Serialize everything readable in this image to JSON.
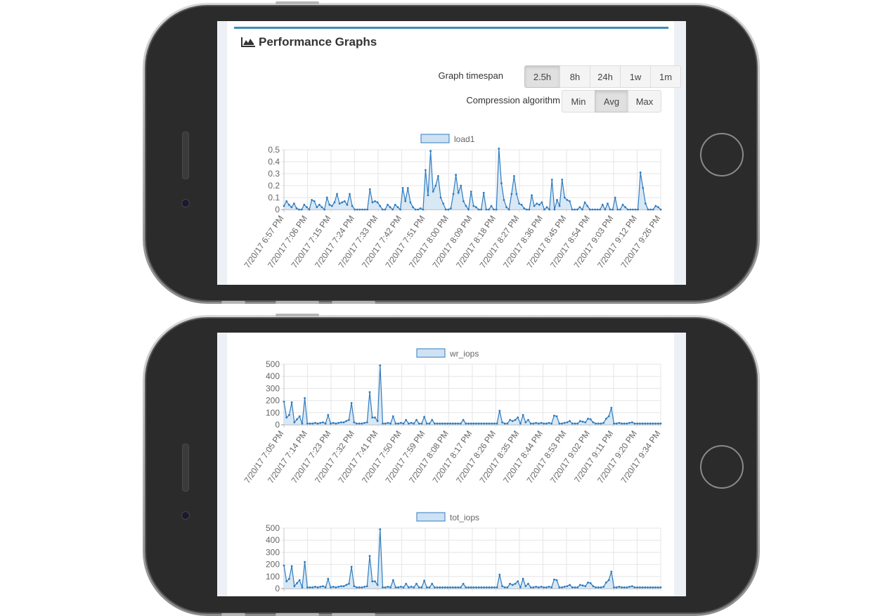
{
  "panel": {
    "title": "Performance Graphs"
  },
  "controls": {
    "timespan_label": "Graph timespan",
    "timespan_options": [
      "2.5h",
      "8h",
      "24h",
      "1w",
      "1m"
    ],
    "timespan_selected": "2.5h",
    "compression_label": "Compression algorithm",
    "compression_options": [
      "Min",
      "Avg",
      "Max"
    ],
    "compression_selected": "Avg"
  },
  "colors": {
    "series_line": "#2f7cc0",
    "series_fill": "#cfe2f3",
    "grid": "#e6e6e6",
    "panel_border": "#3c8dbc"
  },
  "chart_data": [
    {
      "type": "area",
      "legend": "load1",
      "yticks": [
        "0.5",
        "0.4",
        "0.3",
        "0.2",
        "0.1",
        "0"
      ],
      "ylim": [
        0,
        0.5
      ],
      "xticks": [
        "7/20/17 6:57 PM",
        "7/20/17 7:06 PM",
        "7/20/17 7:15 PM",
        "7/20/17 7:24 PM",
        "7/20/17 7:33 PM",
        "7/20/17 7:42 PM",
        "7/20/17 7:51 PM",
        "7/20/17 8:00 PM",
        "7/20/17 8:09 PM",
        "7/20/17 8:18 PM",
        "7/20/17 8:27 PM",
        "7/20/17 8:36 PM",
        "7/20/17 8:45 PM",
        "7/20/17 8:54 PM",
        "7/20/17 9:03 PM",
        "7/20/17 9:12 PM",
        "7/20/17 9:26 PM"
      ],
      "values": [
        0.03,
        0.07,
        0.04,
        0.02,
        0.05,
        0.01,
        0.0,
        0.0,
        0.04,
        0.02,
        0.0,
        0.08,
        0.07,
        0.02,
        0.04,
        0.02,
        0.0,
        0.1,
        0.04,
        0.03,
        0.06,
        0.13,
        0.05,
        0.06,
        0.07,
        0.04,
        0.13,
        0.03,
        0.0,
        0.0,
        0.0,
        0.0,
        0.0,
        0.0,
        0.17,
        0.06,
        0.07,
        0.06,
        0.03,
        0.0,
        0.0,
        0.04,
        0.02,
        0.0,
        0.04,
        0.02,
        0.0,
        0.18,
        0.07,
        0.18,
        0.06,
        0.02,
        0.0,
        0.0,
        0.01,
        0.0,
        0.33,
        0.12,
        0.49,
        0.15,
        0.2,
        0.28,
        0.1,
        0.05,
        0.0,
        0.0,
        0.01,
        0.13,
        0.29,
        0.14,
        0.2,
        0.07,
        0.03,
        0.0,
        0.15,
        0.03,
        0.02,
        0.0,
        0.0,
        0.14,
        0.0,
        0.0,
        0.03,
        0.0,
        0.0,
        0.51,
        0.22,
        0.08,
        0.02,
        0.0,
        0.13,
        0.28,
        0.13,
        0.05,
        0.04,
        0.01,
        0.0,
        0.0,
        0.12,
        0.03,
        0.05,
        0.04,
        0.06,
        0.0,
        0.02,
        0.0,
        0.25,
        0.0,
        0.08,
        0.03,
        0.25,
        0.1,
        0.08,
        0.07,
        0.0,
        0.0,
        0.0,
        0.02,
        0.0,
        0.06,
        0.03,
        0.0,
        0.0,
        0.0,
        0.0,
        0.0,
        0.04,
        0.0,
        0.05,
        0.0,
        0.0,
        0.1,
        0.0,
        0.0,
        0.04,
        0.02,
        0.0,
        0.0,
        0.0,
        0.0,
        0.0,
        0.31,
        0.18,
        0.05,
        0.0,
        0.0,
        0.0,
        0.03,
        0.02,
        0.0
      ]
    },
    {
      "type": "area",
      "legend": "wr_iops",
      "yticks": [
        "500",
        "400",
        "300",
        "200",
        "100",
        "0"
      ],
      "ylim": [
        0,
        500
      ],
      "xticks": [
        "7/20/17 7:05 PM",
        "7/20/17 7:14 PM",
        "7/20/17 7:23 PM",
        "7/20/17 7:32 PM",
        "7/20/17 7:41 PM",
        "7/20/17 7:50 PM",
        "7/20/17 7:59 PM",
        "7/20/17 8:08 PM",
        "7/20/17 8:17 PM",
        "7/20/17 8:26 PM",
        "7/20/17 8:35 PM",
        "7/20/17 8:44 PM",
        "7/20/17 8:53 PM",
        "7/20/17 9:02 PM",
        "7/20/17 9:11 PM",
        "7/20/17 9:20 PM",
        "7/20/17 9:34 PM"
      ],
      "values": [
        190,
        60,
        80,
        185,
        20,
        45,
        70,
        10,
        220,
        10,
        10,
        10,
        15,
        10,
        15,
        20,
        10,
        80,
        10,
        15,
        10,
        15,
        20,
        20,
        30,
        40,
        180,
        20,
        10,
        10,
        10,
        15,
        20,
        270,
        60,
        60,
        30,
        490,
        10,
        10,
        15,
        10,
        70,
        10,
        10,
        15,
        10,
        40,
        10,
        15,
        10,
        40,
        10,
        10,
        65,
        10,
        10,
        40,
        10,
        10,
        10,
        10,
        10,
        10,
        10,
        10,
        10,
        10,
        10,
        40,
        10,
        10,
        10,
        10,
        10,
        10,
        10,
        10,
        10,
        10,
        10,
        10,
        10,
        115,
        20,
        10,
        10,
        40,
        30,
        40,
        60,
        10,
        80,
        20,
        40,
        10,
        10,
        15,
        10,
        15,
        10,
        10,
        15,
        10,
        75,
        70,
        10,
        10,
        15,
        20,
        30,
        10,
        10,
        10,
        30,
        25,
        20,
        50,
        45,
        20,
        10,
        10,
        10,
        15,
        50,
        70,
        140,
        10,
        10,
        15,
        10,
        10,
        10,
        15,
        20,
        10,
        10,
        10,
        10,
        10,
        10,
        10,
        10,
        10,
        10,
        10
      ]
    },
    {
      "type": "area",
      "legend": "tot_iops",
      "yticks": [
        "500",
        "400",
        "300",
        "200",
        "100",
        "0"
      ],
      "ylim": [
        0,
        500
      ],
      "xticks": [],
      "values": [
        190,
        60,
        80,
        185,
        20,
        45,
        70,
        10,
        220,
        10,
        10,
        10,
        15,
        10,
        15,
        20,
        10,
        80,
        10,
        15,
        10,
        15,
        20,
        20,
        30,
        40,
        180,
        20,
        10,
        10,
        10,
        15,
        20,
        270,
        60,
        60,
        30,
        490,
        10,
        10,
        15,
        10,
        70,
        10,
        10,
        15,
        10,
        40,
        10,
        15,
        10,
        40,
        10,
        10,
        65,
        10,
        10,
        40,
        10,
        10,
        10,
        10,
        10,
        10,
        10,
        10,
        10,
        10,
        10,
        40,
        10,
        10,
        10,
        10,
        10,
        10,
        10,
        10,
        10,
        10,
        10,
        10,
        10,
        115,
        20,
        10,
        10,
        40,
        30,
        40,
        60,
        10,
        80,
        20,
        40,
        10,
        10,
        15,
        10,
        15,
        10,
        10,
        15,
        10,
        75,
        70,
        10,
        10,
        15,
        20,
        30,
        10,
        10,
        10,
        30,
        25,
        20,
        50,
        45,
        20,
        10,
        10,
        10,
        15,
        50,
        70,
        140,
        10,
        10,
        15,
        10,
        10,
        10,
        15,
        20,
        10,
        10,
        10,
        10,
        10,
        10,
        10,
        10,
        10,
        10,
        10
      ]
    }
  ]
}
